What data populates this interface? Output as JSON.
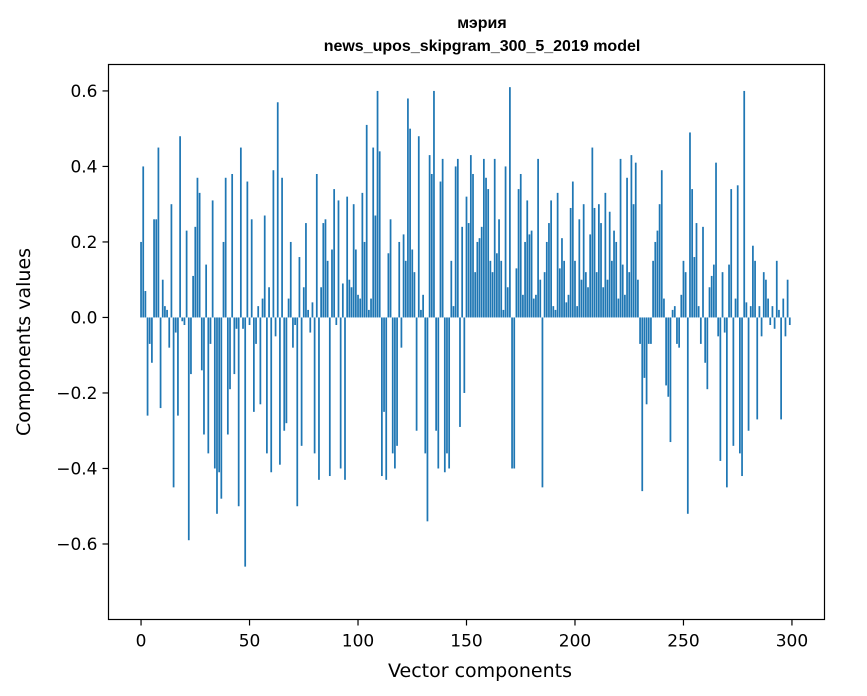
{
  "chart_data": {
    "type": "bar",
    "title": "мэрия",
    "subtitle": "news_upos_skipgram_300_5_2019 model",
    "xlabel": "Vector components",
    "ylabel": "Components values",
    "xlim": [
      -15,
      315
    ],
    "ylim": [
      -0.8,
      0.67
    ],
    "xticks": [
      0,
      50,
      100,
      150,
      200,
      250,
      300
    ],
    "yticks": [
      -0.6,
      -0.4,
      -0.2,
      0.0,
      0.2,
      0.4,
      0.6
    ],
    "ytick_labels": [
      "−0.6",
      "−0.4",
      "−0.2",
      "0.0",
      "0.2",
      "0.4",
      "0.6"
    ],
    "color": "#1f77b4",
    "values": [
      0.2,
      0.4,
      0.07,
      -0.26,
      -0.07,
      -0.12,
      0.26,
      0.26,
      0.45,
      -0.24,
      0.1,
      0.03,
      0.02,
      -0.08,
      0.3,
      -0.45,
      -0.04,
      -0.26,
      0.48,
      -0.01,
      -0.02,
      0.23,
      -0.59,
      -0.15,
      0.11,
      0.24,
      0.37,
      0.33,
      -0.14,
      -0.31,
      0.14,
      -0.36,
      -0.07,
      0.31,
      -0.4,
      -0.52,
      -0.41,
      -0.48,
      0.2,
      0.37,
      -0.31,
      -0.19,
      0.38,
      -0.15,
      -0.03,
      -0.5,
      0.45,
      -0.03,
      -0.66,
      0.36,
      -0.02,
      0.26,
      -0.25,
      -0.07,
      0.03,
      -0.23,
      0.05,
      0.27,
      -0.36,
      0.08,
      -0.41,
      0.39,
      -0.05,
      0.57,
      -0.39,
      0.37,
      -0.3,
      -0.28,
      0.05,
      0.2,
      -0.08,
      -0.02,
      -0.5,
      0.16,
      -0.34,
      0.08,
      0.25,
      0.02,
      -0.04,
      0.04,
      -0.36,
      0.38,
      -0.43,
      0.08,
      0.25,
      0.26,
      0.15,
      -0.42,
      0.18,
      0.34,
      -0.02,
      0.31,
      -0.4,
      0.09,
      -0.43,
      0.32,
      0.1,
      0.08,
      0.3,
      0.18,
      0.06,
      0.05,
      0.33,
      0.2,
      0.51,
      0.02,
      0.05,
      0.45,
      0.27,
      0.6,
      0.44,
      -0.42,
      -0.25,
      -0.43,
      0.17,
      0.26,
      -0.36,
      -0.4,
      -0.34,
      0.2,
      -0.08,
      0.22,
      0.15,
      0.58,
      0.5,
      0.18,
      0.12,
      -0.3,
      0.48,
      0.02,
      0.06,
      -0.36,
      -0.54,
      0.43,
      0.38,
      0.6,
      -0.3,
      -0.4,
      0.36,
      0.42,
      -0.41,
      -0.36,
      -0.4,
      0.15,
      0.03,
      0.4,
      0.42,
      -0.29,
      0.24,
      -0.2,
      0.32,
      0.25,
      0.43,
      0.38,
      0.12,
      0.2,
      0.21,
      0.24,
      0.42,
      0.37,
      0.34,
      0.15,
      0.12,
      0.42,
      0.17,
      0.26,
      0.15,
      0.02,
      0.4,
      0.08,
      0.61,
      -0.4,
      -0.4,
      0.13,
      0.34,
      0.38,
      0.06,
      0.2,
      0.31,
      0.22,
      0.23,
      0.05,
      0.06,
      0.42,
      0.1,
      -0.45,
      0.12,
      0.2,
      0.25,
      0.31,
      0.03,
      0.02,
      0.33,
      0.13,
      0.21,
      0.15,
      0.04,
      0.06,
      0.29,
      0.36,
      0.15,
      0.03,
      0.26,
      0.1,
      0.3,
      0.12,
      0.08,
      0.22,
      0.45,
      0.29,
      0.12,
      0.3,
      0.25,
      0.08,
      0.33,
      0.1,
      0.28,
      0.15,
      0.23,
      0.2,
      0.05,
      0.42,
      0.14,
      0.06,
      0.37,
      0.12,
      0.43,
      0.3,
      0.41,
      0.1,
      -0.07,
      -0.46,
      -0.16,
      -0.23,
      -0.07,
      -0.07,
      0.15,
      0.2,
      0.23,
      0.3,
      0.39,
      0.05,
      -0.18,
      -0.21,
      -0.33,
      0.02,
      0.03,
      -0.07,
      -0.08,
      0.06,
      0.15,
      0.12,
      -0.52,
      0.49,
      0.34,
      0.16,
      0.25,
      0.03,
      -0.07,
      0.24,
      -0.12,
      -0.19,
      0.08,
      0.11,
      0.14,
      0.41,
      -0.05,
      -0.38,
      0.12,
      -0.04,
      -0.45,
      0.14,
      0.34,
      -0.34,
      0.05,
      0.35,
      -0.36,
      -0.42,
      0.6,
      0.04,
      -0.3,
      0.03,
      0.19,
      0.15,
      -0.27,
      0.03,
      -0.05,
      0.12,
      0.1,
      0.05,
      -0.02,
      0.03,
      -0.03,
      0.15,
      0.02,
      -0.27,
      0.05,
      -0.05,
      0.1,
      -0.02
    ]
  }
}
